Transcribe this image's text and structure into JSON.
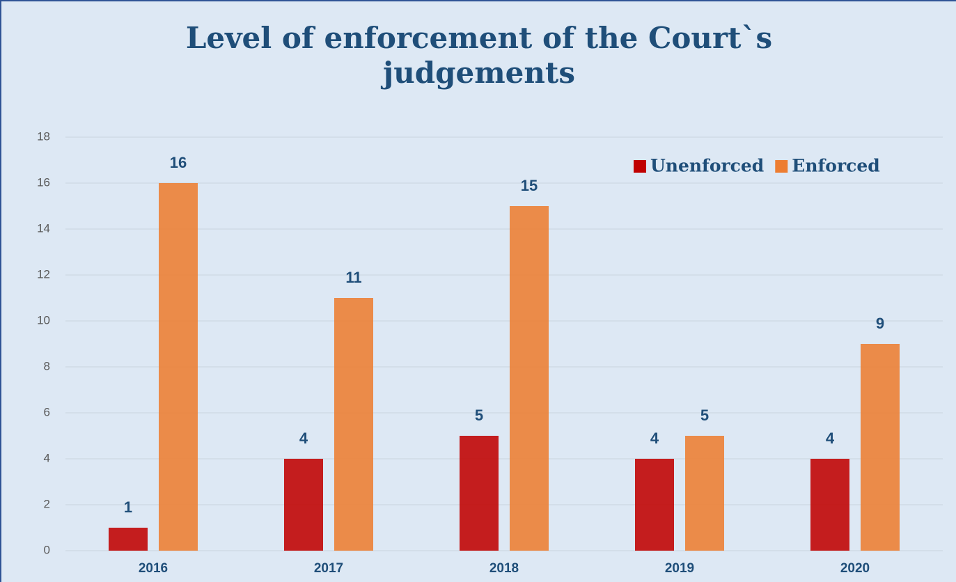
{
  "chart_data": {
    "type": "bar",
    "title": "Level of enforcement of the Court`s judgements",
    "categories": [
      "2016",
      "2017",
      "2018",
      "2019",
      "2020"
    ],
    "series": [
      {
        "name": "Unenforced",
        "color": "#c00000",
        "values": [
          1,
          4,
          5,
          4,
          4
        ]
      },
      {
        "name": "Enforced",
        "color": "#ed7d31",
        "values": [
          16,
          11,
          15,
          5,
          9
        ]
      }
    ],
    "ylim": [
      0,
      18
    ],
    "yticks": [
      0,
      2,
      4,
      6,
      8,
      10,
      12,
      14,
      16,
      18
    ],
    "grid": true,
    "legend_position": "top-right"
  }
}
